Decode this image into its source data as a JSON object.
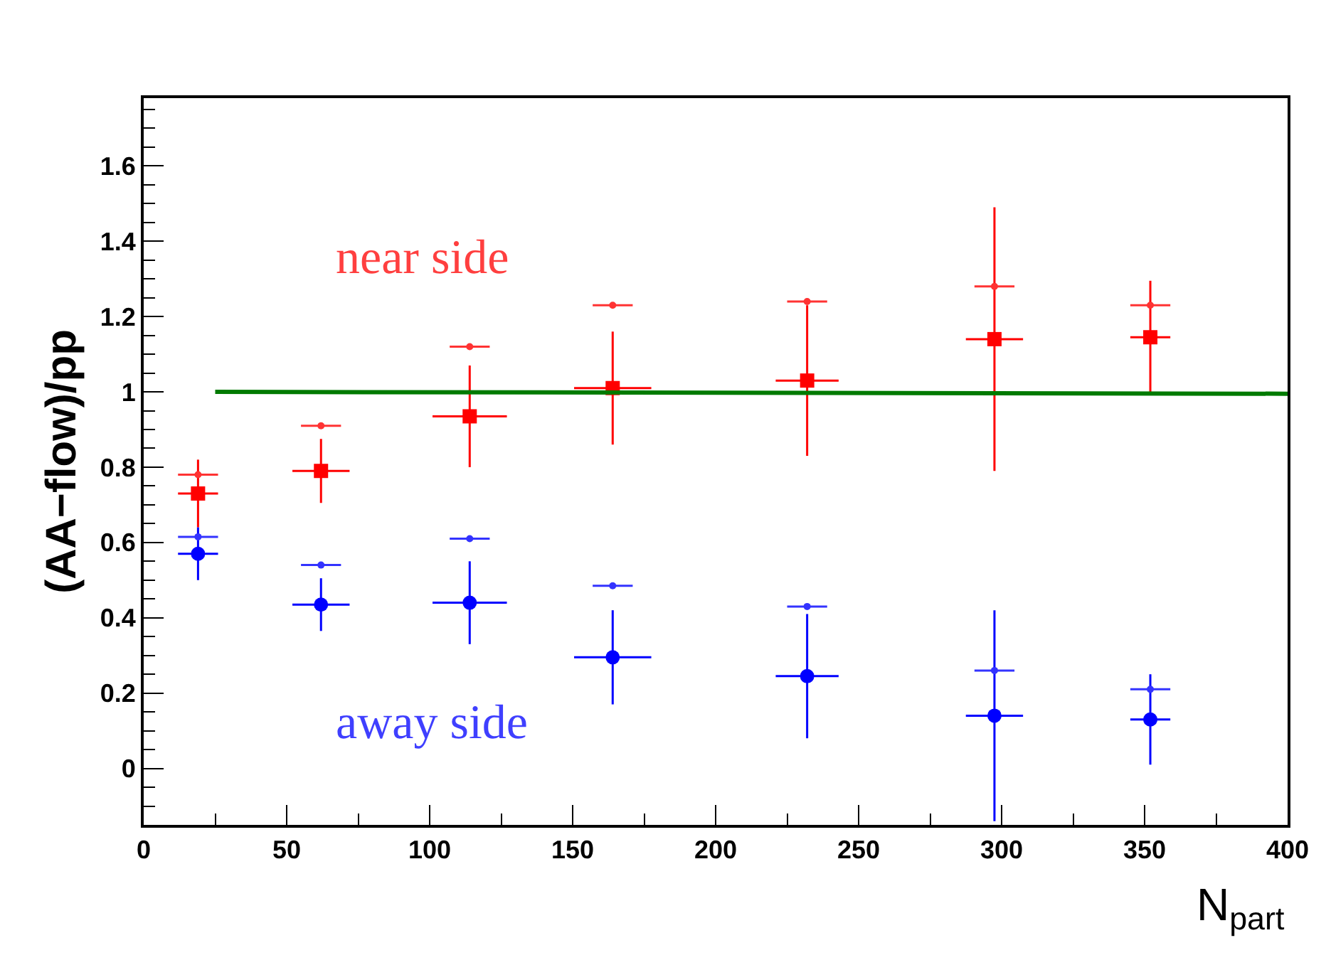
{
  "chart_data": {
    "type": "scatter",
    "xlabel": "N$_{part}$",
    "ylabel": "(AA−flow)/pp",
    "annotations": [
      "near side",
      "away side"
    ],
    "xlim": [
      0,
      400
    ],
    "xticks": [
      0,
      50,
      100,
      150,
      200,
      250,
      300,
      350,
      400
    ],
    "ylim": [
      -0.15,
      1.78
    ],
    "yticks": [
      0,
      0.2,
      0.4,
      0.6,
      0.8,
      1,
      1.2,
      1.4,
      1.6
    ],
    "series": [
      {
        "marker": "square",
        "color": "#ff0000",
        "x": [
          19,
          62,
          114,
          164,
          232,
          297.5,
          352
        ],
        "values": [
          0.73,
          0.79,
          0.935,
          1.01,
          1.03,
          1.14,
          1.145
        ],
        "errors": [
          0.09,
          0.085,
          0.135,
          0.15,
          0.2,
          0.35,
          0.15
        ],
        "xerrors": [
          7,
          10,
          13,
          13.5,
          11,
          10,
          7
        ]
      },
      {
        "marker": "circle",
        "color": "#0000ff",
        "x": [
          19,
          62,
          114,
          164,
          232,
          297.5,
          352
        ],
        "values": [
          0.57,
          0.435,
          0.44,
          0.295,
          0.245,
          0.14,
          0.13
        ],
        "errors": [
          0.07,
          0.07,
          0.11,
          0.125,
          0.165,
          0.28,
          0.12
        ],
        "xerrors": [
          7,
          10,
          13,
          13.5,
          11,
          10,
          7
        ]
      },
      {
        "marker": "circle",
        "color": "#ff3333",
        "x": [
          19,
          62,
          114,
          164,
          232,
          297.5,
          352
        ],
        "values": [
          0.78,
          0.91,
          1.12,
          1.23,
          1.24,
          1.28,
          1.23
        ],
        "xerrors": [
          7,
          7,
          7,
          7,
          7,
          7,
          7
        ]
      },
      {
        "marker": "circle",
        "color": "#3333ff",
        "x": [
          19,
          62,
          114,
          164,
          232,
          297.5,
          352
        ],
        "values": [
          0.615,
          0.54,
          0.61,
          0.485,
          0.43,
          0.26,
          0.21
        ],
        "xerrors": [
          7,
          7,
          7,
          7,
          7,
          7,
          7
        ]
      },
      {
        "type": "line",
        "marker": "none",
        "color": "#007a00",
        "x": [
          25,
          400
        ],
        "values": [
          1,
          0.995
        ]
      }
    ]
  }
}
